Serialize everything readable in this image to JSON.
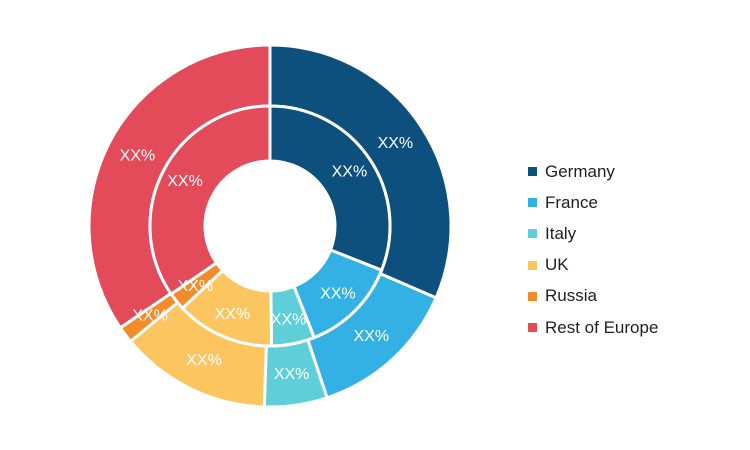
{
  "chart_data": {
    "type": "pie",
    "variant": "double-donut",
    "categories": [
      "Germany",
      "France",
      "Italy",
      "UK",
      "Russia",
      "Rest of Europe"
    ],
    "colors": [
      "#0d4f7d",
      "#33b1e4",
      "#5ecfd8",
      "#fdc55f",
      "#f28b2a",
      "#e34a5a"
    ],
    "series": [
      {
        "values": [
          31.5,
          13.4,
          5.6,
          13.5,
          1.5,
          34.5
        ],
        "labels": [
          "XX%",
          "XX%",
          "XX%",
          "XX%",
          "XX%",
          "XX%"
        ]
      },
      {
        "values": [
          31.0,
          13.0,
          5.8,
          13.2,
          2.4,
          34.6
        ],
        "labels": [
          "XX%",
          "XX%",
          "XX%",
          "XX%",
          "XX%",
          "XX%"
        ]
      }
    ],
    "legend": {
      "position": "right"
    }
  }
}
